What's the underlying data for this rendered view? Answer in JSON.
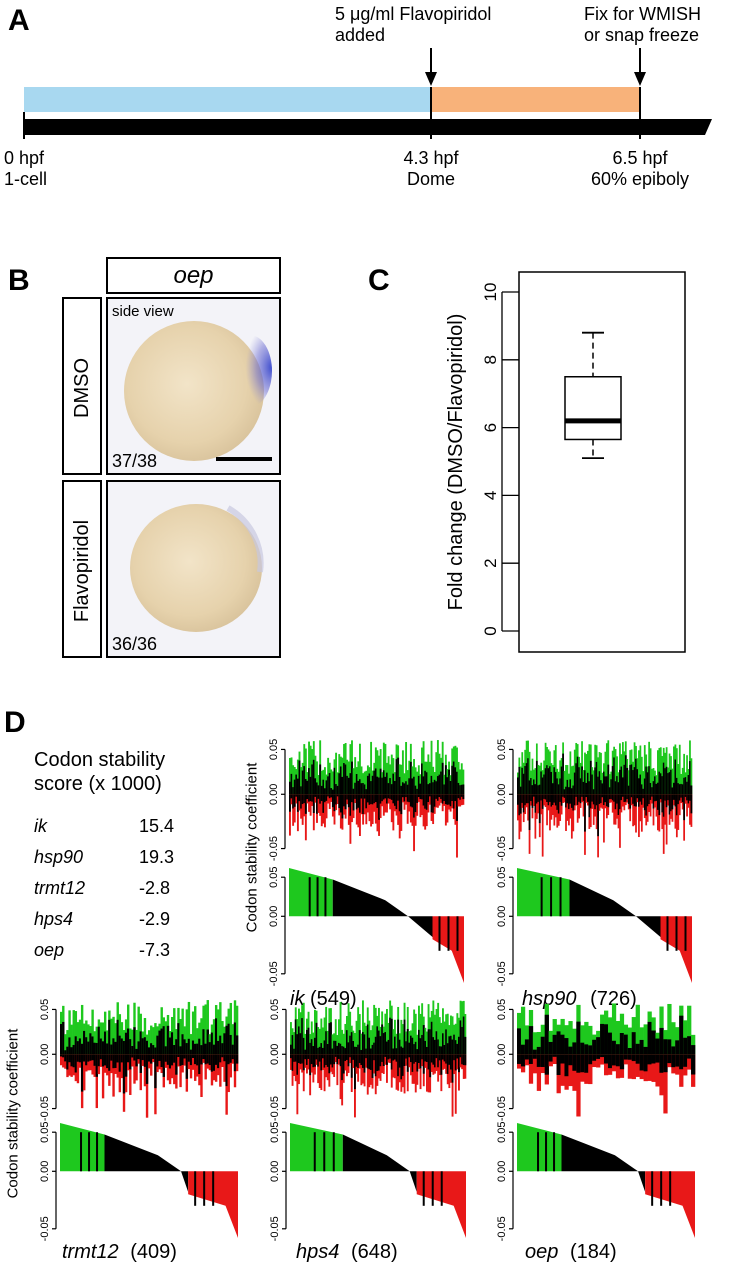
{
  "panelA": {
    "letter": "A",
    "event_added_line1": "5 μg/ml Flavopiridol",
    "event_added_line2": "added",
    "event_fix_line1": "Fix for WMISH",
    "event_fix_line2": "or snap freeze",
    "timepoints": [
      {
        "line1": "0 hpf",
        "line2": "1-cell"
      },
      {
        "line1": "4.3 hpf",
        "line2": "Dome"
      },
      {
        "line1": "6.5 hpf",
        "line2": "60% epiboly"
      }
    ],
    "colors": {
      "pre": "#a8d8f0",
      "treatment": "#f8b27a",
      "bar": "#000000"
    }
  },
  "panelB": {
    "letter": "B",
    "gene": "oep",
    "view_label": "side view",
    "rows": [
      {
        "condition": "DMSO",
        "count": "37/38"
      },
      {
        "condition": "Flavopiridol",
        "count": "36/36"
      }
    ]
  },
  "panelC": {
    "letter": "C",
    "chart_data": {
      "type": "box",
      "ylabel": "Fold change (DMSO/Flavopiridol)",
      "ylim": [
        0,
        10
      ],
      "yticks": [
        "0",
        "2",
        "4",
        "6",
        "8",
        "10"
      ],
      "box": {
        "whisker_low": 5.1,
        "q1": 5.65,
        "median": 6.2,
        "q3": 7.5,
        "whisker_high": 8.8
      }
    }
  },
  "panelD": {
    "letter": "D",
    "table_title_line1": "Codon stability",
    "table_title_line2": "score (x 1000)",
    "scores": [
      {
        "gene": "ik",
        "score": "15.4"
      },
      {
        "gene": "hsp90",
        "score": "19.3"
      },
      {
        "gene": "trmt12",
        "score": "-2.8"
      },
      {
        "gene": "hps4",
        "score": "-2.9"
      },
      {
        "gene": "oep",
        "score": "-7.3"
      }
    ],
    "ylabel": "Codon stability coefficient",
    "yticks": [
      "0.05",
      "0.00",
      "-0.05"
    ],
    "colors": {
      "stabilizing": "#1ec81e",
      "neutral": "#000000",
      "destabilizing": "#e81818"
    },
    "charts": [
      {
        "gene": "ik",
        "count": "(549)"
      },
      {
        "gene": "hsp90",
        "count": "(726)"
      },
      {
        "gene": "trmt12",
        "count": "(409)"
      },
      {
        "gene": "hps4",
        "count": "(648)"
      },
      {
        "gene": "oep",
        "count": "(184)"
      }
    ]
  }
}
